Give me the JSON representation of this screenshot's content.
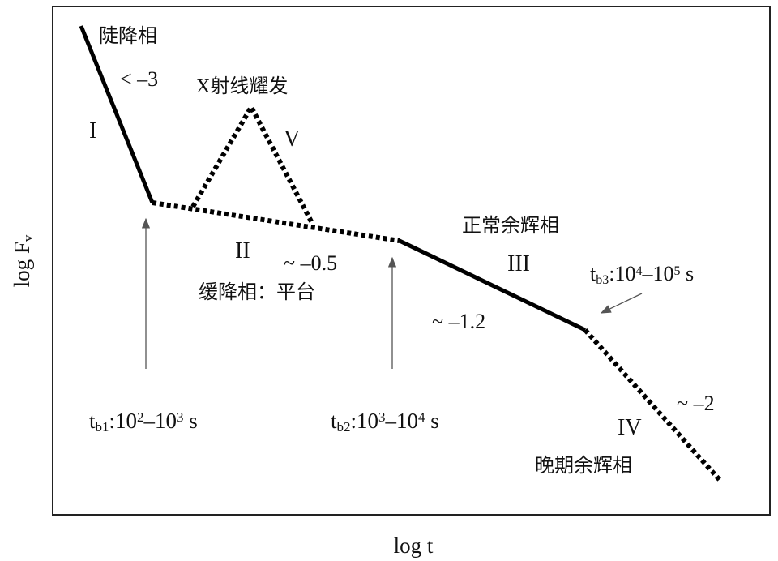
{
  "labels": [
    {
      "color": "#3a5fa8",
      "parts": [
        {
          "text": "陡降相"
        }
      ]
    },
    {
      "color": "#111111",
      "parts": [
        {
          "text": "< –3"
        }
      ]
    },
    {
      "color": "#3a5fa8",
      "parts": [
        {
          "text": "X射线耀发"
        }
      ]
    },
    {
      "color": "#111111",
      "parts": [
        {
          "text": "I"
        }
      ]
    },
    {
      "color": "#111111",
      "parts": [
        {
          "text": "V"
        }
      ]
    },
    {
      "color": "#111111",
      "parts": [
        {
          "text": "II"
        }
      ]
    },
    {
      "color": "#111111",
      "parts": [
        {
          "text": "~ –0.5"
        }
      ]
    },
    {
      "color": "#3a5fa8",
      "parts": [
        {
          "text": "缓降相：平台"
        }
      ]
    },
    {
      "color": "#3a5fa8",
      "parts": [
        {
          "text": "正常余辉相"
        }
      ]
    },
    {
      "color": "#111111",
      "parts": [
        {
          "text": "III"
        }
      ]
    },
    {
      "color": "#111111",
      "parts": [
        {
          "text": "t"
        },
        {
          "text": "b3",
          "shift": "sub"
        },
        {
          "text": ":10"
        },
        {
          "text": "4",
          "shift": "sup"
        },
        {
          "text": "–10"
        },
        {
          "text": "5",
          "shift": "sup"
        },
        {
          "text": " s"
        }
      ]
    },
    {
      "color": "#111111",
      "parts": [
        {
          "text": "~ –1.2"
        }
      ]
    },
    {
      "color": "#111111",
      "parts": [
        {
          "text": "t"
        },
        {
          "text": "b1",
          "shift": "sub"
        },
        {
          "text": ":10"
        },
        {
          "text": "2",
          "shift": "sup"
        },
        {
          "text": "–10"
        },
        {
          "text": "3",
          "shift": "sup"
        },
        {
          "text": " s"
        }
      ]
    },
    {
      "color": "#111111",
      "parts": [
        {
          "text": "t"
        },
        {
          "text": "b2",
          "shift": "sub"
        },
        {
          "text": ":10"
        },
        {
          "text": "3",
          "shift": "sup"
        },
        {
          "text": "–10"
        },
        {
          "text": "4",
          "shift": "sup"
        },
        {
          "text": " s"
        }
      ]
    },
    {
      "color": "#111111",
      "parts": [
        {
          "text": "~ –2"
        }
      ]
    },
    {
      "color": "#111111",
      "parts": [
        {
          "text": "IV"
        }
      ]
    },
    {
      "color": "#3a5fa8",
      "parts": [
        {
          "text": "晚期余辉相"
        }
      ]
    }
  ],
  "axes": {
    "y": {
      "parts": [
        {
          "text": "log F"
        },
        {
          "text": "v",
          "shift": "sub"
        }
      ]
    },
    "x": {
      "parts": [
        {
          "text": "log t"
        }
      ]
    }
  }
}
